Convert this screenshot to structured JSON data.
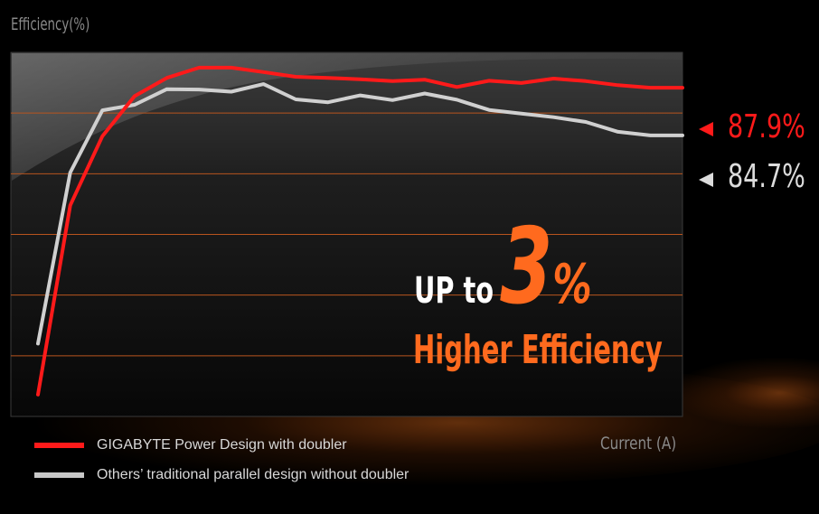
{
  "chart_data": {
    "type": "line",
    "ylabel": "Efficiency(%)",
    "xlabel": "Current (A)",
    "ylim": [
      0,
      100
    ],
    "x": [
      1,
      2,
      3,
      4,
      5,
      6,
      7,
      8,
      9,
      10,
      11,
      12,
      13,
      14,
      15,
      16,
      17,
      18,
      19,
      20,
      21
    ],
    "grid": true,
    "series": [
      {
        "name": "GIGABYTE Power Design with doubler",
        "color": "#ff1a1a",
        "values": [
          6,
          58,
          77,
          88,
          93,
          95.8,
          95.8,
          94.6,
          93.3,
          93.0,
          92.6,
          92.1,
          92.5,
          90.5,
          92.2,
          91.6,
          92.8,
          92.1,
          91.0,
          90.3,
          90.3
        ]
      },
      {
        "name": "Others’ traditional parallel design without doubler",
        "color": "#d0d0d0",
        "values": [
          20,
          67,
          84.1,
          85.6,
          89.9,
          89.8,
          89.2,
          91.3,
          87.1,
          86.3,
          88.2,
          86.9,
          88.7,
          87.0,
          84.2,
          83.2,
          82.2,
          80.9,
          78.2,
          77.2,
          77.2
        ]
      }
    ],
    "end_labels": [
      "87.9%",
      "84.7%"
    ]
  },
  "annotation": {
    "prefix": "UP to",
    "number": "3",
    "percent": "%",
    "subtitle": "Higher Efficiency"
  },
  "legend": [
    {
      "label": "GIGABYTE Power Design with doubler",
      "color": "#ff1a1a"
    },
    {
      "label": "Others’ traditional parallel design without doubler",
      "color": "#c8c8c8"
    }
  ],
  "colors": {
    "accent": "#ff6a1e",
    "gridline": "#b8541e",
    "plot_border": "#3a3a3a",
    "background": "#000000"
  }
}
